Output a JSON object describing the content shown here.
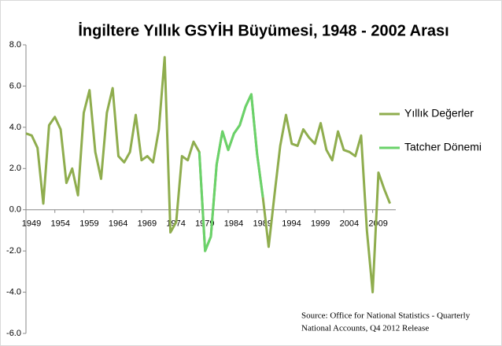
{
  "chart_data": {
    "type": "line",
    "title": "İngiltere Yıllık GSYİH Büyümesi, 1948 - 2002 Arası",
    "x": [
      1949,
      1950,
      1951,
      1952,
      1953,
      1954,
      1955,
      1956,
      1957,
      1958,
      1959,
      1960,
      1961,
      1962,
      1963,
      1964,
      1965,
      1966,
      1967,
      1968,
      1969,
      1970,
      1971,
      1972,
      1973,
      1974,
      1975,
      1976,
      1977,
      1978,
      1979,
      1980,
      1981,
      1982,
      1983,
      1984,
      1985,
      1986,
      1987,
      1988,
      1989,
      1990,
      1991,
      1992,
      1993,
      1994,
      1995,
      1996,
      1997,
      1998,
      1999,
      2000,
      2001,
      2002,
      2003,
      2004,
      2005,
      2006,
      2007,
      2008,
      2009,
      2010,
      2011,
      2012
    ],
    "series": [
      {
        "name": "Yıllık Değerler",
        "color": "#8fad4e",
        "values": [
          3.7,
          3.6,
          3.0,
          0.3,
          4.1,
          4.5,
          3.9,
          1.3,
          2.0,
          0.7,
          4.7,
          5.8,
          2.8,
          1.5,
          4.7,
          5.9,
          2.6,
          2.3,
          2.8,
          4.6,
          2.4,
          2.6,
          2.3,
          3.9,
          7.4,
          -1.1,
          -0.6,
          2.6,
          2.4,
          3.3,
          2.8,
          -2.0,
          -1.3,
          2.2,
          3.8,
          2.9,
          3.7,
          4.1,
          5.0,
          5.6,
          2.7,
          0.6,
          -1.8,
          0.7,
          3.1,
          4.6,
          3.2,
          3.1,
          3.9,
          3.5,
          3.2,
          4.2,
          2.9,
          2.4,
          3.8,
          2.9,
          2.8,
          2.6,
          3.6,
          -1.0,
          -4.0,
          1.8,
          1.0,
          0.3
        ]
      },
      {
        "name": "Tatcher Dönemi",
        "color": "#6ad26a",
        "values": [
          null,
          null,
          null,
          null,
          null,
          null,
          null,
          null,
          null,
          null,
          null,
          null,
          null,
          null,
          null,
          null,
          null,
          null,
          null,
          null,
          null,
          null,
          null,
          null,
          null,
          null,
          null,
          null,
          null,
          null,
          2.8,
          -2.0,
          -1.3,
          2.2,
          3.8,
          2.9,
          3.7,
          4.1,
          5.0,
          5.6,
          2.7,
          0.6,
          null,
          null,
          null,
          null,
          null,
          null,
          null,
          null,
          null,
          null,
          null,
          null,
          null,
          null,
          null,
          null,
          null,
          null,
          null,
          null,
          null,
          null
        ]
      }
    ],
    "xlim": [
      1949,
      2013
    ],
    "xticks": [
      1949,
      1954,
      1959,
      1964,
      1969,
      1974,
      1979,
      1984,
      1989,
      1994,
      1999,
      2004,
      2009
    ],
    "ylim": [
      -6,
      8
    ],
    "yticks": [
      {
        "value": -6,
        "label": "-6.0"
      },
      {
        "value": -4,
        "label": "-4.0"
      },
      {
        "value": -2,
        "label": "-2.0"
      },
      {
        "value": 0,
        "label": "0.0"
      },
      {
        "value": 2,
        "label": "2.0"
      },
      {
        "value": 4,
        "label": "4.0"
      },
      {
        "value": 6,
        "label": "6.0"
      },
      {
        "value": 8,
        "label": "8.0"
      }
    ],
    "legend": "right",
    "source": [
      "Source: Office for National Statistics - Quarterly",
      "National Accounts, Q4 2012 Release"
    ]
  }
}
